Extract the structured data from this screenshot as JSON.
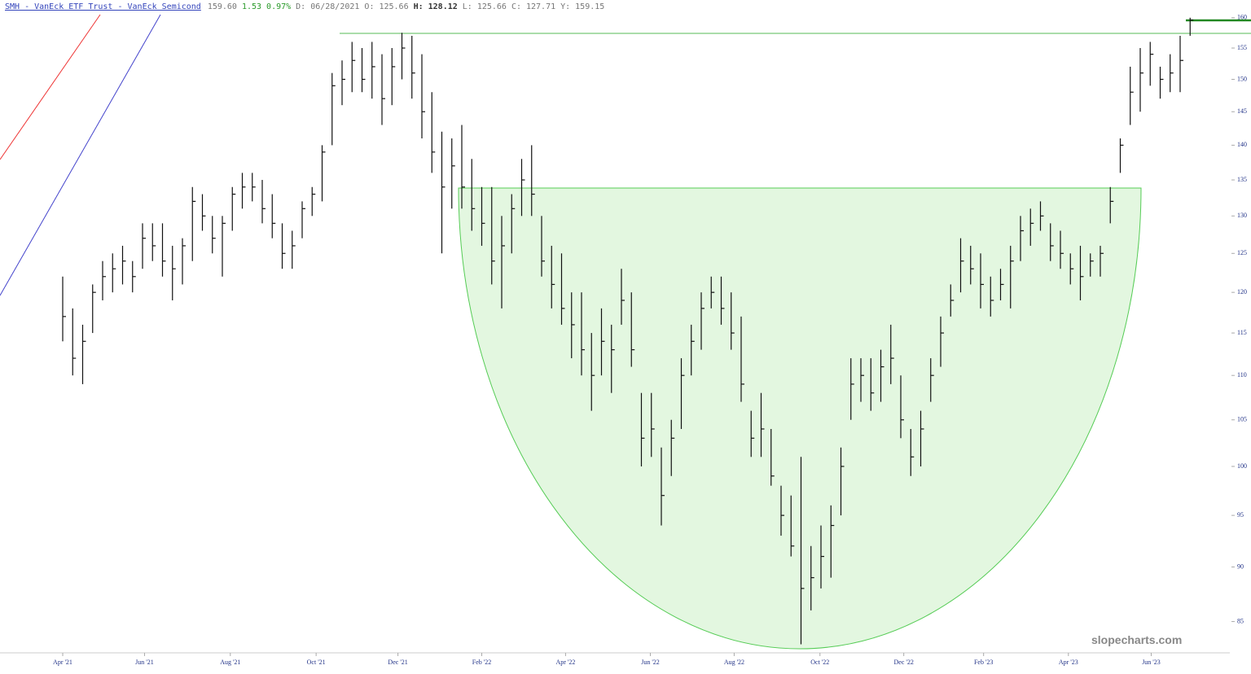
{
  "header": {
    "title": "SMH - VanEck ETF Trust - VanEck Semicond",
    "last": "159.60",
    "change": "1.53",
    "change_pct": "0.97%",
    "quote": [
      {
        "label": "D:",
        "value": "06/28/2021"
      },
      {
        "label": "O:",
        "value": "125.66"
      },
      {
        "label": "H:",
        "value": "128.12"
      },
      {
        "label": "L:",
        "value": "125.66"
      },
      {
        "label": "C:",
        "value": "127.71"
      },
      {
        "label": "Y:",
        "value": "159.15"
      }
    ]
  },
  "watermark": "slopecharts.com",
  "chart_data": {
    "type": "ohlc",
    "log_scale": true,
    "color": "#111111",
    "ylim": [
      82.4,
      163
    ],
    "yticks": [
      85,
      90,
      95,
      100,
      105,
      110,
      115,
      120,
      125,
      130,
      135,
      140,
      145,
      150,
      155,
      160
    ],
    "xticks": [
      {
        "value": 0,
        "label": "Apr '21"
      },
      {
        "value": 8.2,
        "label": "Jun '21"
      },
      {
        "value": 16.8,
        "label": "Aug '21"
      },
      {
        "value": 25.4,
        "label": "Oct '21"
      },
      {
        "value": 33.6,
        "label": "Dec '21"
      },
      {
        "value": 42,
        "label": "Feb '22"
      },
      {
        "value": 50.4,
        "label": "Apr '22"
      },
      {
        "value": 58.9,
        "label": "Jun '22"
      },
      {
        "value": 67.3,
        "label": "Aug '22"
      },
      {
        "value": 75.9,
        "label": "Oct '22"
      },
      {
        "value": 84.3,
        "label": "Dec '22"
      },
      {
        "value": 92.3,
        "label": "Feb '23"
      },
      {
        "value": 100.8,
        "label": "Apr '23"
      },
      {
        "value": 109.1,
        "label": "Jun '23"
      }
    ],
    "high": [
      122,
      118,
      116,
      121,
      124,
      125,
      126,
      124,
      129,
      129,
      129,
      126,
      127,
      134,
      133,
      130,
      130,
      134,
      136,
      136,
      135,
      133,
      129,
      128,
      132,
      134,
      140,
      151,
      153,
      156,
      155,
      156,
      154,
      155,
      157.5,
      157,
      154,
      148,
      142,
      141,
      143,
      138,
      134,
      134,
      130,
      133,
      138,
      140,
      130,
      126,
      125,
      120,
      120,
      115,
      118,
      116,
      123,
      120,
      108,
      108,
      102,
      105,
      112,
      116,
      120,
      122,
      122,
      120,
      117,
      106,
      108,
      104,
      98,
      97,
      101,
      92,
      94,
      96,
      102,
      112,
      112,
      112,
      113,
      116,
      110,
      104,
      106,
      112,
      117,
      121,
      127,
      126,
      125,
      122,
      123,
      126,
      130,
      131,
      132,
      129,
      128,
      125,
      126,
      125,
      126,
      134,
      141,
      152,
      155,
      156,
      152,
      154,
      157,
      160
    ],
    "low": [
      114,
      110,
      109,
      115,
      119,
      120,
      121,
      120,
      123,
      124,
      122,
      119,
      121,
      124,
      128,
      125,
      122,
      128,
      131,
      132,
      129,
      127,
      123,
      123,
      127,
      130,
      132,
      140,
      146,
      148,
      148,
      147,
      143,
      146,
      150,
      147,
      141,
      136,
      125,
      131,
      131,
      128,
      126,
      121,
      118,
      125,
      130,
      130,
      122,
      118,
      116,
      112,
      110,
      106,
      110,
      108,
      116,
      111,
      100,
      101,
      94,
      99,
      104,
      110,
      113,
      118,
      116,
      113,
      107,
      101,
      101,
      98,
      93,
      91,
      83,
      86,
      88,
      89,
      95,
      105,
      107,
      106,
      107,
      109,
      103,
      99,
      100,
      107,
      111,
      117,
      120,
      121,
      118,
      117,
      119,
      118,
      124,
      126,
      128,
      124,
      123,
      121,
      119,
      122,
      122,
      129,
      136,
      143,
      145,
      149,
      147,
      148,
      148,
      157
    ],
    "close": [
      117,
      112,
      114,
      120,
      122,
      123,
      124,
      122,
      127,
      126,
      124,
      123,
      126,
      132,
      130,
      127,
      129,
      133,
      134,
      134,
      131,
      129,
      125,
      126,
      131,
      133,
      139,
      149,
      150,
      153,
      150,
      152,
      147,
      152,
      155,
      151,
      145,
      139,
      134,
      137,
      134,
      131,
      129,
      124,
      126,
      131,
      135,
      133,
      124,
      121,
      118,
      116,
      113,
      110,
      114,
      113,
      119,
      113,
      103,
      104,
      97,
      103,
      110,
      114,
      118,
      120,
      118,
      115,
      109,
      103,
      104,
      99,
      95,
      92,
      88,
      89,
      91,
      94,
      100,
      109,
      110,
      108,
      111,
      112,
      105,
      101,
      104,
      110,
      115,
      119,
      124,
      123,
      121,
      119,
      121,
      124,
      128,
      129,
      130,
      126,
      125,
      123,
      122,
      124,
      125,
      132,
      140,
      148,
      151,
      154,
      150,
      151,
      153,
      159.6
    ]
  }
}
